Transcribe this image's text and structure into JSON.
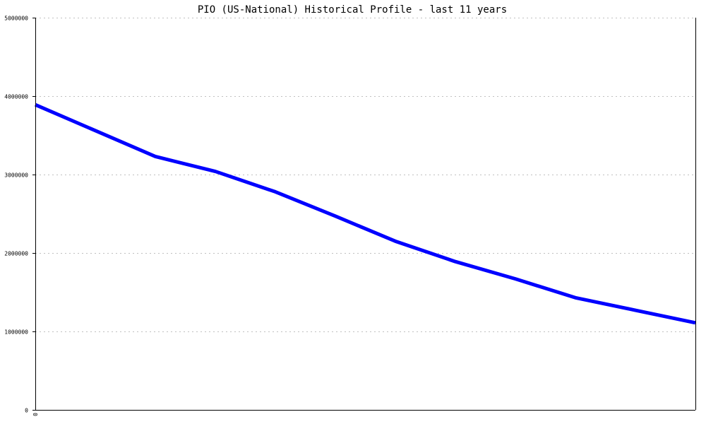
{
  "chart_data": {
    "type": "line",
    "title": "PIO (US-National) Historical Profile - last 11 years",
    "xlabel": "",
    "ylabel": "",
    "x_tick_labels": [
      "0"
    ],
    "y_tick_labels": [
      "0",
      "1000000",
      "2000000",
      "3000000",
      "4000000",
      "5000000"
    ],
    "ylim": [
      0,
      5000000
    ],
    "grid": true,
    "x": [
      0,
      1,
      2,
      3,
      4,
      5,
      6,
      7,
      8,
      9,
      10,
      11
    ],
    "series": [
      {
        "values": [
          3890000,
          3560000,
          3230000,
          3040000,
          2780000,
          2470000,
          2150000,
          1890000,
          1670000,
          1430000,
          1270000,
          1110000
        ],
        "color": "#0000ff"
      }
    ]
  }
}
